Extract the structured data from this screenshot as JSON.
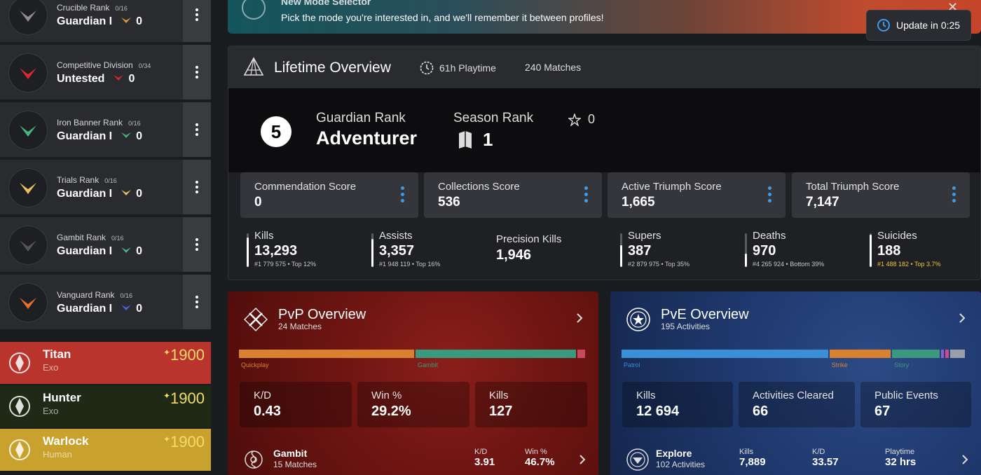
{
  "sidebar": {
    "ranks": [
      {
        "title": "Crucible Rank",
        "count": "0/16",
        "value": "Guardian I",
        "points": "0",
        "chevron_color": "#e39a37",
        "emblem_color": "#8e8e8e"
      },
      {
        "title": "Competitive Division",
        "count": "0/34",
        "value": "Untested",
        "points": "0",
        "chevron_color": "#e0262b",
        "emblem_color": "#e0262b"
      },
      {
        "title": "Iron Banner Rank",
        "count": "0/16",
        "value": "Guardian I",
        "points": "0",
        "chevron_color": "#47b47c",
        "emblem_color": "#47b47c"
      },
      {
        "title": "Trials Rank",
        "count": "0/16",
        "value": "Guardian I",
        "points": "0",
        "chevron_color": "#e8c25a",
        "emblem_color": "#e8c25a"
      },
      {
        "title": "Gambit Rank",
        "count": "0/16",
        "value": "Guardian I",
        "points": "0",
        "chevron_color": "#41b887",
        "emblem_color": "#555"
      },
      {
        "title": "Vanguard Rank",
        "count": "0/16",
        "value": "Guardian I",
        "points": "0",
        "chevron_color": "#4766e2",
        "emblem_color": "#e86f2c"
      }
    ],
    "characters": [
      {
        "name": "Titan",
        "race": "Exo",
        "light": "1900",
        "bg": "#b8342c"
      },
      {
        "name": "Hunter",
        "race": "Exo",
        "light": "1900",
        "bg": "#1f2a16"
      },
      {
        "name": "Warlock",
        "race": "Human",
        "light": "1900",
        "bg": "#c9a22d"
      }
    ]
  },
  "banner": {
    "title": "New Mode Selector",
    "text": "Pick the mode you're interested in, and we'll remember it between profiles!",
    "update_label": "Update in 0:25"
  },
  "lifetime": {
    "title": "Lifetime Overview",
    "playtime": "61h Playtime",
    "matches": "240 Matches",
    "guardian_rank_number": "5",
    "guardian_rank_label": "Guardian Rank",
    "guardian_rank_value": "Adventurer",
    "season_rank_label": "Season Rank",
    "season_rank_value": "1",
    "season_extra": "0",
    "scores": [
      {
        "label": "Commendation Score",
        "value": "0"
      },
      {
        "label": "Collections Score",
        "value": "536"
      },
      {
        "label": "Active Triumph Score",
        "value": "1,665"
      },
      {
        "label": "Total Triumph Score",
        "value": "7,147"
      }
    ],
    "stats": [
      {
        "label": "Kills",
        "value": "13,293",
        "rank": "#1 779 575 • Top 12%",
        "bar_fill": 0.88,
        "rank_color": "#c8c8c8"
      },
      {
        "label": "Assists",
        "value": "3,357",
        "rank": "#1 948 119 • Top 16%",
        "bar_fill": 0.84,
        "rank_color": "#c8c8c8"
      },
      {
        "label": "Precision Kills",
        "value": "1,946",
        "rank": "",
        "bar_fill": 0,
        "rank_color": "#c8c8c8"
      },
      {
        "label": "Supers",
        "value": "387",
        "rank": "#2 879 975 • Top 35%",
        "bar_fill": 0.65,
        "rank_color": "#c8c8c8"
      },
      {
        "label": "Deaths",
        "value": "970",
        "rank": "#4 265 924 • Bottom 39%",
        "bar_fill": 0.39,
        "rank_color": "#c8c8c8"
      },
      {
        "label": "Suicides",
        "value": "188",
        "rank": "#1 488 182 • Top 3.7%",
        "bar_fill": 0.96,
        "rank_color": "#e8c63a"
      }
    ]
  },
  "pvp": {
    "title": "PvP Overview",
    "subtitle": "24 Matches",
    "segments": [
      {
        "label": "Quickplay",
        "fraction": 0.508,
        "color": "#d9812e"
      },
      {
        "label": "Gambit",
        "fraction": 0.465,
        "color": "#3a9a7d"
      },
      {
        "label": "",
        "fraction": 0.027,
        "color": "#c8485e"
      }
    ],
    "cards": [
      {
        "label": "K/D",
        "value": "0.43"
      },
      {
        "label": "Win %",
        "value": "29.2%"
      },
      {
        "label": "Kills",
        "value": "127"
      }
    ],
    "row": {
      "title": "Gambit",
      "sub": "15 Matches",
      "c1_label": "K/D",
      "c1_value": "3.91",
      "c2_label": "Win %",
      "c2_value": "46.7%"
    }
  },
  "pve": {
    "title": "PvE Overview",
    "subtitle": "195 Activities",
    "segments": [
      {
        "label": "Patrol",
        "fraction": 0.597,
        "color": "#3a8fd6"
      },
      {
        "label": "Strike",
        "fraction": 0.18,
        "color": "#d9812e"
      },
      {
        "label": "Story",
        "fraction": 0.14,
        "color": "#3a9a7d"
      },
      {
        "label": "",
        "fraction": 0.013,
        "color": "#8a5fd0"
      },
      {
        "label": "",
        "fraction": 0.013,
        "color": "#d04a8a"
      },
      {
        "label": "",
        "fraction": 0.047,
        "color": "#9aa0aa"
      }
    ],
    "cards": [
      {
        "label": "Kills",
        "value": "12 694"
      },
      {
        "label": "Activities Cleared",
        "value": "66"
      },
      {
        "label": "Public Events",
        "value": "67"
      }
    ],
    "row": {
      "title": "Explore",
      "sub": "102 Activities",
      "c1_label": "Kills",
      "c1_value": "7,889",
      "c2_label": "K/D",
      "c2_value": "33.57",
      "c3_label": "Playtime",
      "c3_value": "32 hrs"
    }
  }
}
